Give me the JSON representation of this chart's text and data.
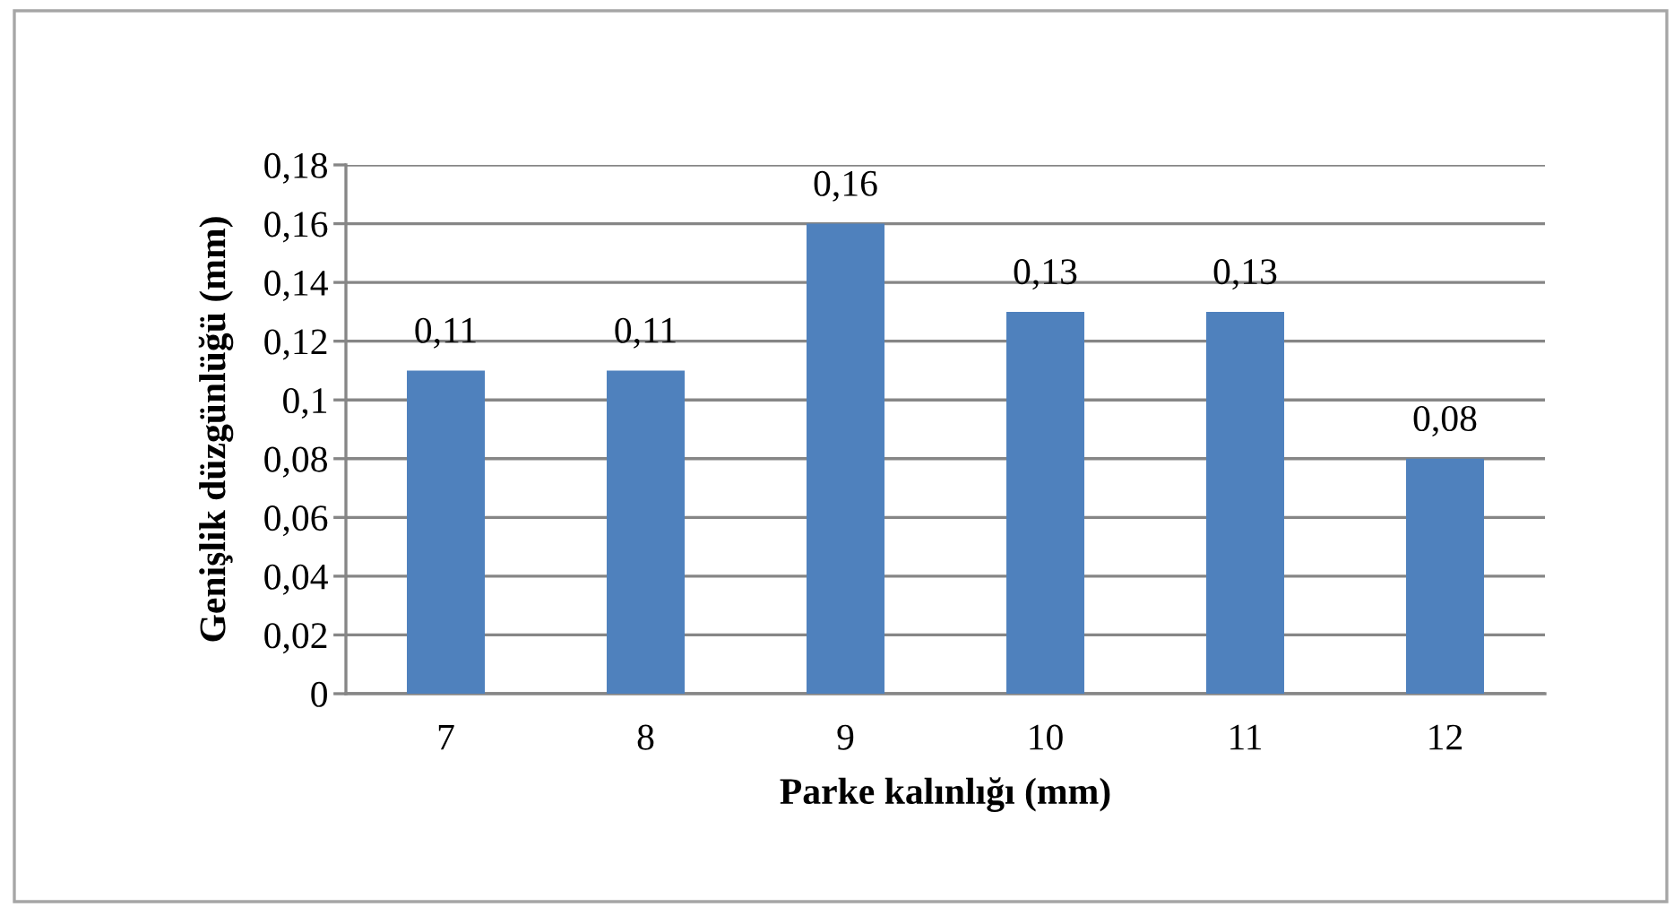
{
  "chart_data": {
    "type": "bar",
    "xlabel": "Parke kalınlığı (mm)",
    "ylabel": "Genişlik düzgünlüğü (mm)",
    "categories": [
      "7",
      "8",
      "9",
      "10",
      "11",
      "12"
    ],
    "values": [
      0.11,
      0.11,
      0.16,
      0.13,
      0.13,
      0.08
    ],
    "value_labels": [
      "0,11",
      "0,11",
      "0,16",
      "0,13",
      "0,13",
      "0,08"
    ],
    "color": "#4f81bd",
    "ylim": [
      0,
      0.18
    ],
    "yticks": [
      {
        "value": 0,
        "label": "0"
      },
      {
        "value": 0.02,
        "label": "0,02"
      },
      {
        "value": 0.04,
        "label": "0,04"
      },
      {
        "value": 0.06,
        "label": "0,06"
      },
      {
        "value": 0.08,
        "label": "0,08"
      },
      {
        "value": 0.1,
        "label": "0,1"
      },
      {
        "value": 0.12,
        "label": "0,12"
      },
      {
        "value": 0.14,
        "label": "0,14"
      },
      {
        "value": 0.16,
        "label": "0,16"
      },
      {
        "value": 0.18,
        "label": "0,18"
      }
    ],
    "grid": "y"
  }
}
